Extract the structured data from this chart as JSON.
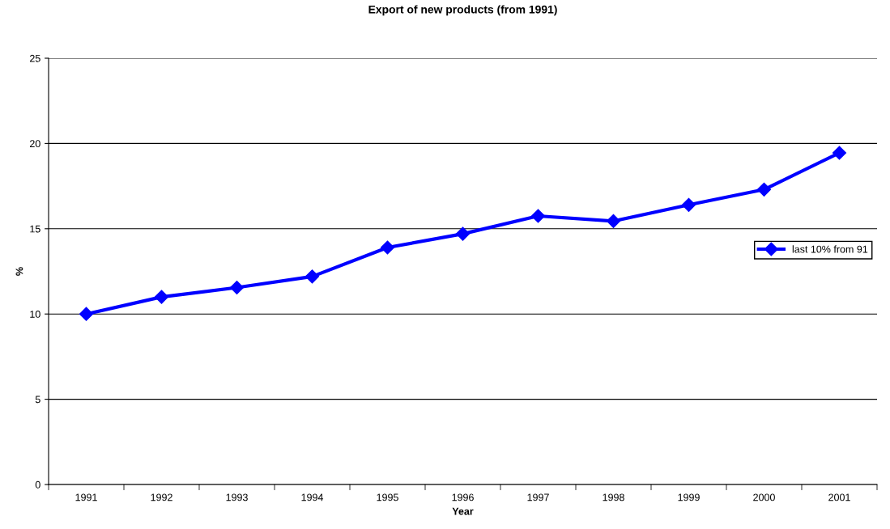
{
  "chart_data": {
    "type": "line",
    "title": "Export of new products (from 1991)",
    "xlabel": "Year",
    "ylabel": "%",
    "categories": [
      "1991",
      "1992",
      "1993",
      "1994",
      "1995",
      "1996",
      "1997",
      "1998",
      "1999",
      "2000",
      "2001"
    ],
    "series": [
      {
        "name": "last 10% from 91",
        "color": "#0000ff",
        "values": [
          10.0,
          11.0,
          11.55,
          12.2,
          13.9,
          14.7,
          15.75,
          15.45,
          16.4,
          17.3,
          19.45
        ]
      }
    ],
    "ylim": [
      0,
      25
    ],
    "yticks": [
      0,
      5,
      10,
      15,
      20,
      25
    ],
    "grid": "y",
    "legend": "right",
    "marker": "diamond",
    "line_style": "solid"
  }
}
